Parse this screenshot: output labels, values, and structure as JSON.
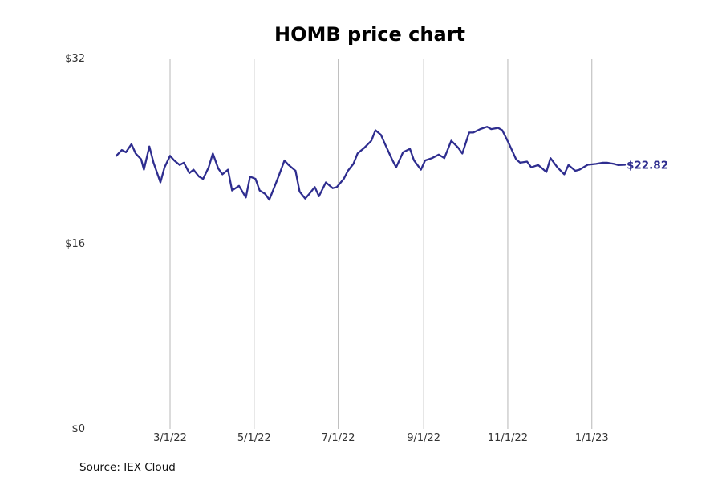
{
  "chart_data": {
    "type": "line",
    "title": "HOMB price chart",
    "xlabel": "",
    "ylabel": "",
    "source": "Source: IEX Cloud",
    "color": "#2e2d8f",
    "ylim": [
      0,
      32
    ],
    "y_ticks": [
      {
        "value": 0,
        "label": "$0"
      },
      {
        "value": 16,
        "label": "$16"
      },
      {
        "value": 32,
        "label": "$32"
      }
    ],
    "x_ticks": [
      {
        "date": "2022-03-01",
        "label": "3/1/22"
      },
      {
        "date": "2022-05-01",
        "label": "5/1/22"
      },
      {
        "date": "2022-07-01",
        "label": "7/1/22"
      },
      {
        "date": "2022-09-01",
        "label": "9/1/22"
      },
      {
        "date": "2022-11-01",
        "label": "11/1/22"
      },
      {
        "date": "2023-01-01",
        "label": "1/1/23"
      }
    ],
    "grid": "vertical",
    "last_value_label": "$22.82",
    "series": [
      {
        "x": [
          "2022-01-21",
          "2022-01-25",
          "2022-01-28",
          "2022-02-01",
          "2022-02-04",
          "2022-02-08",
          "2022-02-10",
          "2022-02-14",
          "2022-02-17",
          "2022-02-22",
          "2022-02-25",
          "2022-03-01",
          "2022-03-04",
          "2022-03-08",
          "2022-03-11",
          "2022-03-15",
          "2022-03-18",
          "2022-03-22",
          "2022-03-25",
          "2022-03-29",
          "2022-04-01",
          "2022-04-05",
          "2022-04-08",
          "2022-04-12",
          "2022-04-15",
          "2022-04-20",
          "2022-04-25",
          "2022-04-28",
          "2022-05-02",
          "2022-05-05",
          "2022-05-09",
          "2022-05-12",
          "2022-05-16",
          "2022-05-19",
          "2022-05-23",
          "2022-05-26",
          "2022-05-31",
          "2022-06-03",
          "2022-06-07",
          "2022-06-10",
          "2022-06-14",
          "2022-06-17",
          "2022-06-22",
          "2022-06-27",
          "2022-06-30",
          "2022-07-05",
          "2022-07-08",
          "2022-07-12",
          "2022-07-15",
          "2022-07-20",
          "2022-07-25",
          "2022-07-28",
          "2022-08-01",
          "2022-08-04",
          "2022-08-09",
          "2022-08-12",
          "2022-08-17",
          "2022-08-22",
          "2022-08-25",
          "2022-08-30",
          "2022-09-02",
          "2022-09-07",
          "2022-09-12",
          "2022-09-16",
          "2022-09-21",
          "2022-09-26",
          "2022-09-29",
          "2022-10-04",
          "2022-10-07",
          "2022-10-12",
          "2022-10-17",
          "2022-10-20",
          "2022-10-25",
          "2022-10-28",
          "2022-11-02",
          "2022-11-07",
          "2022-11-10",
          "2022-11-15",
          "2022-11-18",
          "2022-11-23",
          "2022-11-29",
          "2022-12-02",
          "2022-12-07",
          "2022-12-12",
          "2022-12-15",
          "2022-12-20",
          "2022-12-23",
          "2022-12-29",
          "2023-01-04",
          "2023-01-09",
          "2023-01-12",
          "2023-01-17",
          "2023-01-20",
          "2023-01-25"
        ],
        "y": [
          23.6,
          24.1,
          23.9,
          24.6,
          23.8,
          23.3,
          22.4,
          24.4,
          23.0,
          21.3,
          22.6,
          23.6,
          23.2,
          22.8,
          23.0,
          22.1,
          22.4,
          21.8,
          21.6,
          22.6,
          23.8,
          22.5,
          22.0,
          22.4,
          20.6,
          21.0,
          20.0,
          21.8,
          21.6,
          20.6,
          20.3,
          19.8,
          21.0,
          21.9,
          23.2,
          22.8,
          22.3,
          20.5,
          19.9,
          20.3,
          20.9,
          20.1,
          21.3,
          20.8,
          20.9,
          21.6,
          22.3,
          22.9,
          23.8,
          24.3,
          24.9,
          25.8,
          25.4,
          24.6,
          23.3,
          22.6,
          23.9,
          24.2,
          23.2,
          22.4,
          23.2,
          23.4,
          23.7,
          23.4,
          24.9,
          24.3,
          23.8,
          25.6,
          25.6,
          25.9,
          26.1,
          25.9,
          26.0,
          25.8,
          24.6,
          23.3,
          23.0,
          23.1,
          22.6,
          22.8,
          22.2,
          23.4,
          22.6,
          22.0,
          22.8,
          22.3,
          22.4,
          22.82,
          22.9,
          23.0,
          23.0,
          22.9,
          22.8,
          22.82
        ]
      }
    ]
  }
}
